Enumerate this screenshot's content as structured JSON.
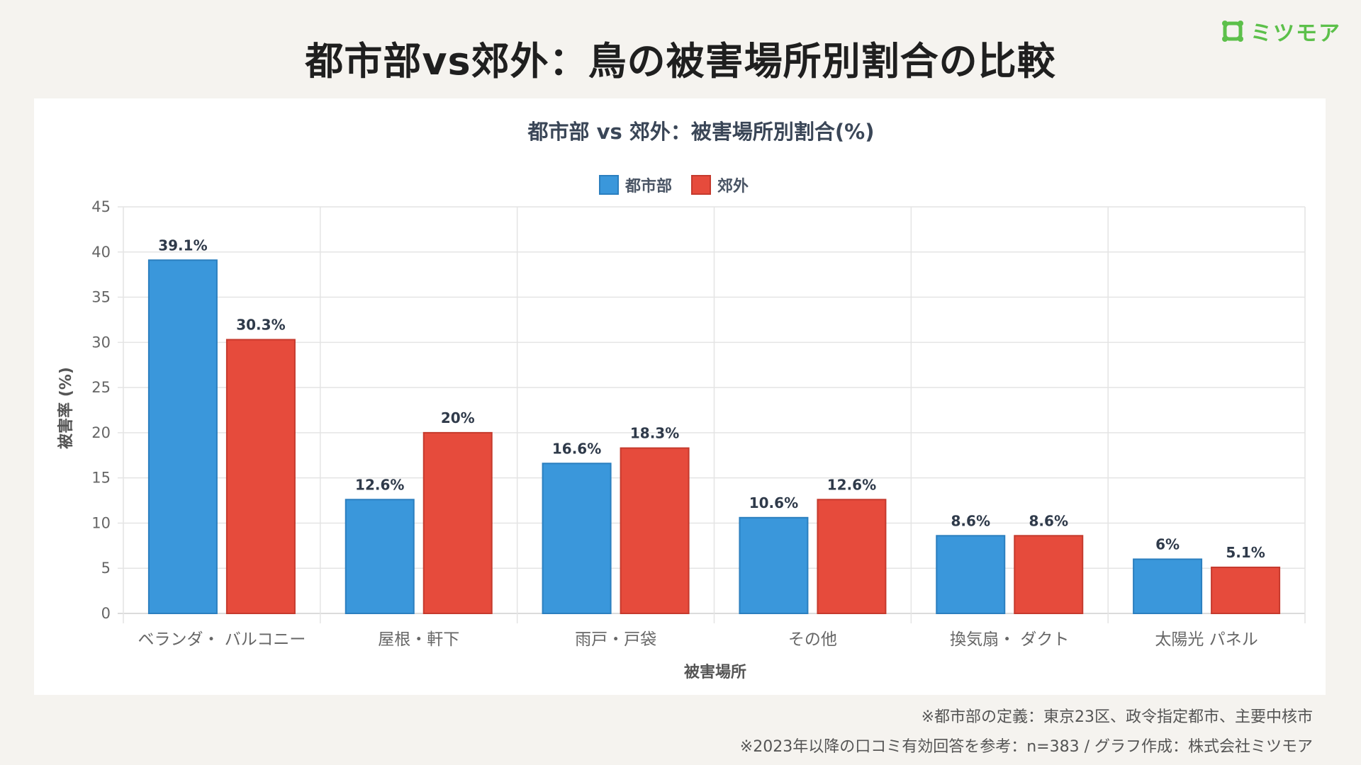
{
  "page_title": "都市部vs郊外：鳥の被害場所別割合の比較",
  "logo": {
    "text": "ミツモア",
    "color": "#5cc04a",
    "icon": "mitsumore-logo-icon"
  },
  "chart_data": {
    "type": "bar",
    "title": "都市部 vs 郊外：被害場所別割合(%)",
    "xlabel": "被害場所",
    "ylabel": "被害率 (%)",
    "ylim": [
      0,
      45
    ],
    "yticks": [
      0,
      5,
      10,
      15,
      20,
      25,
      30,
      35,
      40,
      45
    ],
    "ytick_labels": [
      "0",
      "5",
      "10",
      "15",
      "20",
      "25",
      "30",
      "35",
      "40",
      "45"
    ],
    "grid": true,
    "legend_position": "top-center",
    "categories": [
      "ベランダ・ バルコニー",
      "屋根・軒下",
      "雨戸・戸袋",
      "その他",
      "換気扇・ ダクト",
      "太陽光 パネル"
    ],
    "series": [
      {
        "name": "都市部",
        "color": "#3a97db",
        "values": [
          39.1,
          12.6,
          16.6,
          10.6,
          8.6,
          6
        ],
        "labels": [
          "39.1%",
          "12.6%",
          "16.6%",
          "10.6%",
          "8.6%",
          "6%"
        ]
      },
      {
        "name": "郊外",
        "color": "#e64b3c",
        "values": [
          30.3,
          20,
          18.3,
          12.6,
          8.6,
          5.1
        ],
        "labels": [
          "30.3%",
          "20%",
          "18.3%",
          "12.6%",
          "8.6%",
          "5.1%"
        ]
      }
    ]
  },
  "footnotes": [
    "※都市部の定義：東京23区、政令指定都市、主要中核市",
    "※2023年以降の口コミ有効回答を参考：n=383 / グラフ作成：株式会社ミツモア"
  ]
}
